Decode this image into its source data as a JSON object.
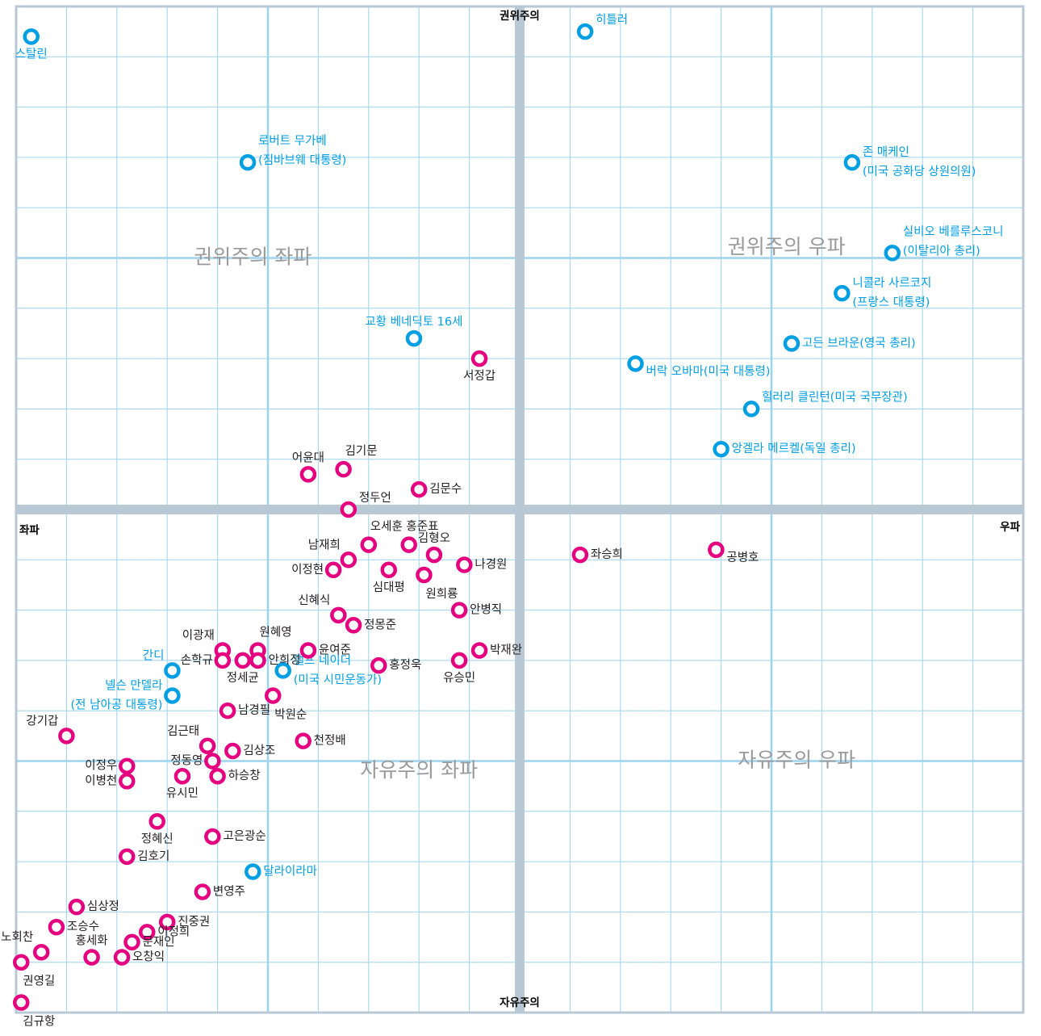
{
  "chart_data": {
    "type": "scatter",
    "title": "",
    "xlabel": "",
    "ylabel": "",
    "xlim": [
      -10,
      10
    ],
    "ylim": [
      -10,
      10
    ],
    "grid": true,
    "axis_labels": {
      "top": "권위주의",
      "bottom": "자유주의",
      "left": "좌파",
      "right": "우파"
    },
    "quadrant_labels": [
      {
        "text": "권위주의 좌파",
        "x": -5.3,
        "y": 5.0
      },
      {
        "text": "권위주의 우파",
        "x": 5.3,
        "y": 5.2
      },
      {
        "text": "자유주의 좌파",
        "x": -2.0,
        "y": -5.2
      },
      {
        "text": "자유주의 우파",
        "x": 5.5,
        "y": -5.0
      }
    ],
    "colors": {
      "world": "#009fe3",
      "korea": "#e4007f",
      "grid": "#9dd3ee",
      "axis": "#b8c8d4"
    },
    "series": [
      {
        "key": "world",
        "points": [
          {
            "label": [
              "스탈린"
            ],
            "x": -9.7,
            "y": 9.4,
            "pos": "below"
          },
          {
            "label": [
              "히틀러"
            ],
            "x": 1.3,
            "y": 9.5,
            "pos": "right-up"
          },
          {
            "label": [
              "로버트 무가베",
              "(짐바브웨 대통령)"
            ],
            "x": -5.4,
            "y": 6.9,
            "pos": "right-up"
          },
          {
            "label": [
              "존 매케인",
              "(미국 공화당 상원의원)"
            ],
            "x": 6.6,
            "y": 6.9,
            "pos": "right"
          },
          {
            "label": [
              "실비오 베를루스코니",
              "(이탈리아 총리)"
            ],
            "x": 7.4,
            "y": 5.1,
            "pos": "right-up"
          },
          {
            "label": [
              "니콜라 사르코지",
              "(프랑스 대통령)"
            ],
            "x": 6.4,
            "y": 4.3,
            "pos": "right"
          },
          {
            "label": [
              "교황 베네딕토 16세"
            ],
            "x": -2.1,
            "y": 3.4,
            "pos": "above"
          },
          {
            "label": [
              "고든 브라운(영국 총리)"
            ],
            "x": 5.4,
            "y": 3.3,
            "pos": "right"
          },
          {
            "label": [
              "버락 오바마(미국 대통령)"
            ],
            "x": 2.3,
            "y": 2.9,
            "pos": "right-down"
          },
          {
            "label": [
              "힐러리 클린턴(미국 국무장관)"
            ],
            "x": 4.6,
            "y": 2.0,
            "pos": "right-up"
          },
          {
            "label": [
              "앙겔라 메르켈(독일 총리)"
            ],
            "x": 4.0,
            "y": 1.2,
            "pos": "right"
          },
          {
            "label": [
              "간디"
            ],
            "x": -6.9,
            "y": -3.2,
            "pos": "left-up"
          },
          {
            "label": [
              "넬슨 만델라",
              "(전 남아공 대통령)"
            ],
            "x": -6.9,
            "y": -3.7,
            "pos": "left"
          },
          {
            "label": [
              "랠프 네이더",
              "(미국 시민운동가)"
            ],
            "x": -4.7,
            "y": -3.2,
            "pos": "right"
          },
          {
            "label": [
              "달라이라마"
            ],
            "x": -5.3,
            "y": -7.2,
            "pos": "right"
          }
        ]
      },
      {
        "key": "korea",
        "points": [
          {
            "label": [
              "서정갑"
            ],
            "x": -0.8,
            "y": 3.0,
            "pos": "below"
          },
          {
            "label": [
              "어윤대"
            ],
            "x": -4.2,
            "y": 0.7,
            "pos": "above"
          },
          {
            "label": [
              "김기문"
            ],
            "x": -3.5,
            "y": 0.8,
            "pos": "above-right"
          },
          {
            "label": [
              "김문수"
            ],
            "x": -2.0,
            "y": 0.4,
            "pos": "right"
          },
          {
            "label": [
              "정두언"
            ],
            "x": -3.4,
            "y": 0.0,
            "pos": "right-up"
          },
          {
            "label": [
              "오세훈 홍준표"
            ],
            "x": -3.0,
            "y": -0.7,
            "pos": "above-right"
          },
          {
            "label": [],
            "x": -2.2,
            "y": -0.7,
            "pos": "none"
          },
          {
            "label": [
              "김형오"
            ],
            "x": -1.7,
            "y": -0.9,
            "pos": "above"
          },
          {
            "label": [
              "남재희"
            ],
            "x": -3.4,
            "y": -1.0,
            "pos": "left-up"
          },
          {
            "label": [
              "나경원"
            ],
            "x": -1.1,
            "y": -1.1,
            "pos": "right"
          },
          {
            "label": [
              "이정현"
            ],
            "x": -3.7,
            "y": -1.2,
            "pos": "left"
          },
          {
            "label": [
              "심대평"
            ],
            "x": -2.6,
            "y": -1.2,
            "pos": "below"
          },
          {
            "label": [
              "원희룡"
            ],
            "x": -1.9,
            "y": -1.3,
            "pos": "below-right"
          },
          {
            "label": [
              "좌승희"
            ],
            "x": 1.2,
            "y": -0.9,
            "pos": "right"
          },
          {
            "label": [
              "공병호"
            ],
            "x": 3.9,
            "y": -0.8,
            "pos": "right-down"
          },
          {
            "label": [
              "신혜식"
            ],
            "x": -3.6,
            "y": -2.1,
            "pos": "left-up"
          },
          {
            "label": [
              "정몽준"
            ],
            "x": -3.3,
            "y": -2.3,
            "pos": "right"
          },
          {
            "label": [
              "안병직"
            ],
            "x": -1.2,
            "y": -2.0,
            "pos": "right"
          },
          {
            "label": [
              "박재완"
            ],
            "x": -0.8,
            "y": -2.8,
            "pos": "right"
          },
          {
            "label": [
              "유승민"
            ],
            "x": -1.2,
            "y": -3.0,
            "pos": "below"
          },
          {
            "label": [
              "윤여준"
            ],
            "x": -4.2,
            "y": -2.8,
            "pos": "right"
          },
          {
            "label": [
              "이광재"
            ],
            "x": -5.9,
            "y": -2.8,
            "pos": "left-up"
          },
          {
            "label": [
              "원혜영"
            ],
            "x": -5.2,
            "y": -2.8,
            "pos": "above-right"
          },
          {
            "label": [
              "손학규"
            ],
            "x": -5.9,
            "y": -3.0,
            "pos": "left"
          },
          {
            "label": [
              "정세균"
            ],
            "x": -5.5,
            "y": -3.0,
            "pos": "below"
          },
          {
            "label": [
              "안희정"
            ],
            "x": -5.2,
            "y": -3.0,
            "pos": "right"
          },
          {
            "label": [
              "홍정욱"
            ],
            "x": -2.8,
            "y": -3.1,
            "pos": "right"
          },
          {
            "label": [
              "박원순"
            ],
            "x": -4.9,
            "y": -3.7,
            "pos": "below-right"
          },
          {
            "label": [
              "남경필"
            ],
            "x": -5.8,
            "y": -4.0,
            "pos": "right"
          },
          {
            "label": [
              "강기갑"
            ],
            "x": -9.0,
            "y": -4.5,
            "pos": "left-up"
          },
          {
            "label": [
              "김근태"
            ],
            "x": -6.2,
            "y": -4.7,
            "pos": "left-up"
          },
          {
            "label": [
              "김상조"
            ],
            "x": -5.7,
            "y": -4.8,
            "pos": "right"
          },
          {
            "label": [
              "천정배"
            ],
            "x": -4.3,
            "y": -4.6,
            "pos": "right"
          },
          {
            "label": [
              "정동영"
            ],
            "x": -6.1,
            "y": -5.0,
            "pos": "left"
          },
          {
            "label": [
              "이정우"
            ],
            "x": -7.8,
            "y": -5.1,
            "pos": "left"
          },
          {
            "label": [
              "이병천"
            ],
            "x": -7.8,
            "y": -5.4,
            "pos": "left"
          },
          {
            "label": [
              "유시민"
            ],
            "x": -6.7,
            "y": -5.3,
            "pos": "below"
          },
          {
            "label": [
              "하승창"
            ],
            "x": -6.0,
            "y": -5.3,
            "pos": "right"
          },
          {
            "label": [
              "정혜신"
            ],
            "x": -7.2,
            "y": -6.2,
            "pos": "below"
          },
          {
            "label": [
              "고은광순"
            ],
            "x": -6.1,
            "y": -6.5,
            "pos": "right"
          },
          {
            "label": [
              "김호기"
            ],
            "x": -7.8,
            "y": -6.9,
            "pos": "right"
          },
          {
            "label": [
              "변영주"
            ],
            "x": -6.3,
            "y": -7.6,
            "pos": "right"
          },
          {
            "label": [
              "심상정"
            ],
            "x": -8.8,
            "y": -7.9,
            "pos": "right"
          },
          {
            "label": [
              "진중권"
            ],
            "x": -7.0,
            "y": -8.2,
            "pos": "right"
          },
          {
            "label": [
              "조승수"
            ],
            "x": -9.2,
            "y": -8.3,
            "pos": "right"
          },
          {
            "label": [
              "이정희"
            ],
            "x": -7.4,
            "y": -8.4,
            "pos": "right"
          },
          {
            "label": [
              "노회찬"
            ],
            "x": -9.5,
            "y": -8.8,
            "pos": "left-up"
          },
          {
            "label": [
              "홍세화"
            ],
            "x": -8.5,
            "y": -8.9,
            "pos": "above"
          },
          {
            "label": [
              "문재인"
            ],
            "x": -7.7,
            "y": -8.6,
            "pos": "right"
          },
          {
            "label": [
              "오창익"
            ],
            "x": -7.9,
            "y": -8.9,
            "pos": "right"
          },
          {
            "label": [
              "권영길"
            ],
            "x": -9.9,
            "y": -9.0,
            "pos": "below-right"
          },
          {
            "label": [
              "김규항"
            ],
            "x": -9.9,
            "y": -9.8,
            "pos": "below-right"
          }
        ]
      }
    ]
  }
}
